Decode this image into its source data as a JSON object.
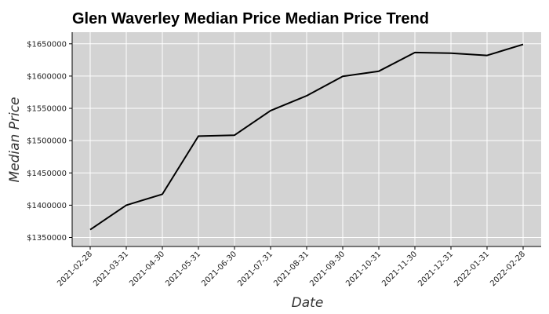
{
  "chart_data": {
    "type": "line",
    "title": "Glen Waverley Median Price Median Price Trend",
    "xlabel": "Date",
    "ylabel": "Median Price",
    "x": [
      "2021-02-28",
      "2021-03-31",
      "2021-04-30",
      "2021-05-31",
      "2021-06-30",
      "2021-07-31",
      "2021-08-31",
      "2021-09-30",
      "2021-10-31",
      "2021-11-30",
      "2021-12-31",
      "2022-01-31",
      "2022-02-28"
    ],
    "series": [
      {
        "values": [
          1362000,
          1400000,
          1417000,
          1507000,
          1508500,
          1546500,
          1569500,
          1599500,
          1607500,
          1636500,
          1635500,
          1632000,
          1649000
        ]
      }
    ],
    "y_ticks": [
      1350000,
      1400000,
      1450000,
      1500000,
      1550000,
      1600000,
      1650000
    ],
    "y_tick_labels": [
      "$1350000",
      "$1400000",
      "$1450000",
      "$1500000",
      "$1550000",
      "$1600000",
      "$1650000"
    ],
    "ylim": [
      1336000,
      1668000
    ],
    "grid": true,
    "legend": "none",
    "colors": {
      "plot_background": "#d3d3d3",
      "grid": "#ffffff",
      "line": "#000000"
    }
  }
}
